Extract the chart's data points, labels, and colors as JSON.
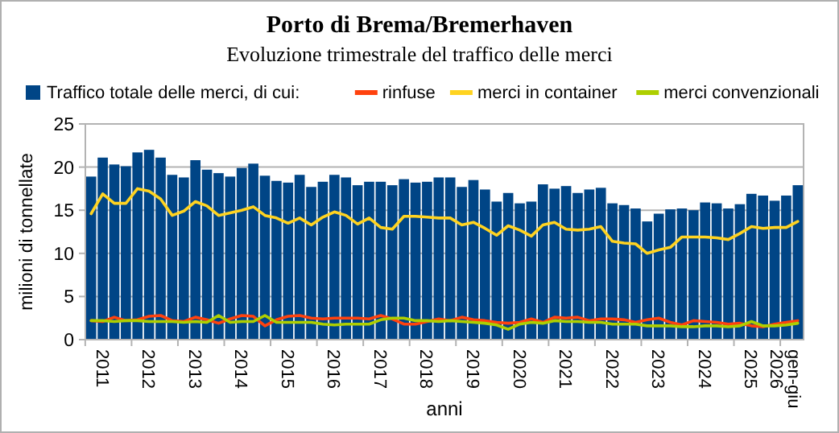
{
  "chart_data": {
    "type": "bar",
    "title": "Porto di Brema/Bremerhaven",
    "subtitle": "Evoluzione trimestrale del traffico delle merci",
    "xlabel": "anni",
    "ylabel": "milioni di tonnellate",
    "categories": [
      null,
      "2011",
      null,
      null,
      null,
      "2012",
      null,
      null,
      null,
      "2013",
      null,
      null,
      null,
      "2014",
      null,
      null,
      null,
      "2015",
      null,
      null,
      null,
      "2016",
      null,
      null,
      null,
      "2017",
      null,
      null,
      null,
      "2018",
      null,
      null,
      null,
      "2019",
      null,
      null,
      null,
      "2020",
      null,
      null,
      null,
      "2021",
      null,
      null,
      null,
      "2022",
      null,
      null,
      null,
      "2023",
      null,
      null,
      null,
      "2024",
      null,
      null,
      null,
      "2025",
      null,
      null,
      "gen-giu\n2026",
      null
    ],
    "series": [
      {
        "name": "Traffico totale delle merci, di cui:",
        "color": "#004586",
        "values": [
          18.9,
          21.1,
          20.3,
          20.1,
          21.7,
          22.0,
          21.1,
          19.1,
          18.8,
          20.8,
          19.7,
          19.3,
          18.9,
          19.9,
          20.4,
          19.0,
          18.4,
          18.2,
          19.1,
          17.7,
          18.3,
          19.1,
          18.8,
          17.9,
          18.3,
          18.3,
          17.9,
          18.6,
          18.2,
          18.3,
          18.8,
          18.8,
          17.7,
          18.5,
          17.4,
          16.0,
          17.0,
          15.8,
          16.0,
          18.0,
          17.5,
          17.8,
          17.0,
          17.4,
          17.6,
          15.8,
          15.6,
          15.2,
          13.7,
          14.6,
          15.1,
          15.2,
          15.0,
          15.9,
          15.8,
          15.2,
          15.7,
          16.9,
          16.7,
          16.1,
          16.7,
          17.9
        ]
      },
      {
        "name": "rinfuse",
        "type": "line",
        "color": "#ff420e",
        "values": [
          2.2,
          2.1,
          2.6,
          2.2,
          2.3,
          2.7,
          2.8,
          2.2,
          2.1,
          2.6,
          2.3,
          1.9,
          2.4,
          2.8,
          2.7,
          1.6,
          2.3,
          2.7,
          2.8,
          2.5,
          2.4,
          2.5,
          2.5,
          2.5,
          2.4,
          2.8,
          2.4,
          1.8,
          1.8,
          2.1,
          2.4,
          2.2,
          2.6,
          2.3,
          2.2,
          2.0,
          1.9,
          2.0,
          2.4,
          2.0,
          2.6,
          2.5,
          2.6,
          2.2,
          2.4,
          2.4,
          2.3,
          2.0,
          2.3,
          2.5,
          2.0,
          1.7,
          2.2,
          2.1,
          2.0,
          1.8,
          1.9,
          1.6,
          1.5,
          1.8,
          2.0,
          2.2
        ]
      },
      {
        "name": "merci in container",
        "type": "line",
        "color": "#ffd320",
        "values": [
          14.6,
          16.9,
          15.8,
          15.8,
          17.5,
          17.2,
          16.3,
          14.4,
          14.9,
          16.0,
          15.5,
          14.4,
          14.7,
          15.0,
          15.4,
          14.4,
          14.1,
          13.5,
          14.1,
          13.3,
          14.2,
          14.8,
          14.4,
          13.4,
          14.1,
          13.0,
          12.8,
          14.3,
          14.3,
          14.2,
          14.1,
          14.1,
          13.3,
          13.6,
          12.9,
          12.1,
          13.2,
          12.7,
          12.0,
          13.3,
          13.6,
          12.8,
          12.7,
          12.8,
          13.1,
          11.4,
          11.2,
          11.1,
          10.0,
          10.4,
          10.7,
          11.9,
          11.9,
          11.9,
          11.8,
          11.6,
          12.3,
          13.1,
          12.9,
          13.0,
          13.0,
          13.7
        ]
      },
      {
        "name": "merci convenzionali",
        "type": "line",
        "color": "#aecf00",
        "values": [
          2.2,
          2.2,
          2.1,
          2.2,
          2.2,
          2.1,
          2.1,
          2.1,
          2.0,
          2.1,
          2.0,
          2.8,
          2.0,
          2.1,
          2.1,
          2.8,
          2.0,
          2.0,
          2.0,
          2.0,
          1.8,
          1.7,
          1.8,
          1.8,
          1.8,
          2.3,
          2.5,
          2.5,
          2.2,
          2.2,
          2.1,
          2.2,
          2.1,
          2.0,
          1.9,
          1.7,
          1.2,
          1.8,
          2.0,
          1.9,
          2.2,
          2.1,
          2.1,
          2.0,
          2.0,
          1.8,
          1.8,
          1.8,
          1.6,
          1.6,
          1.6,
          1.5,
          1.5,
          1.6,
          1.6,
          1.5,
          1.6,
          2.1,
          1.6,
          1.6,
          1.7,
          1.9
        ]
      }
    ],
    "ylim": [
      0,
      25
    ],
    "yticks": [
      0,
      5,
      10,
      15,
      20,
      25
    ],
    "grid": "y",
    "legend": "top"
  }
}
